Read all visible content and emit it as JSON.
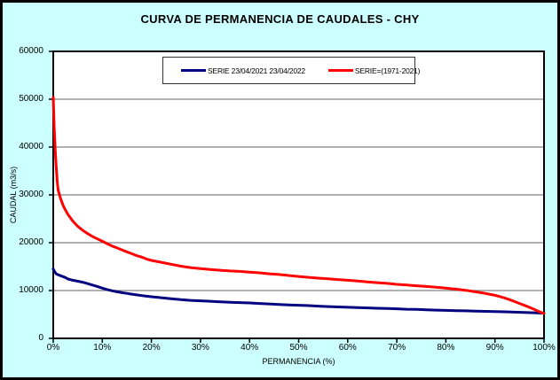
{
  "chart": {
    "title": "CURVA DE PERMANENCIA DE CAUDALES - CHY"
  },
  "chart_data": {
    "type": "line",
    "title": "CURVA DE PERMANENCIA DE CAUDALES - CHY",
    "xlabel": "PERMANENCIA (%)",
    "ylabel": "CAUDAL (m3/s)",
    "xlim": [
      0,
      100
    ],
    "ylim": [
      0,
      60000
    ],
    "x_ticks": [
      "0%",
      "10%",
      "20%",
      "30%",
      "40%",
      "50%",
      "60%",
      "70%",
      "80%",
      "90%",
      "100%"
    ],
    "y_ticks": [
      "0",
      "10000",
      "20000",
      "30000",
      "40000",
      "50000",
      "60000"
    ],
    "grid": "horizontal-only",
    "gridline_color": "#808080",
    "background_color": "#CCFFFF",
    "plot_background": "#FFFFFF",
    "axis_color": "#000000",
    "legend_position": "top-center-inside",
    "series": [
      {
        "name": "SERIE 23/04/2021 23/04/2022",
        "color": "#000080",
        "points": [
          [
            0,
            14500
          ],
          [
            0.3,
            13900
          ],
          [
            0.6,
            13500
          ],
          [
            1,
            13300
          ],
          [
            1.5,
            13100
          ],
          [
            2,
            12900
          ],
          [
            2.5,
            12700
          ],
          [
            3,
            12400
          ],
          [
            4,
            12150
          ],
          [
            5,
            11950
          ],
          [
            6,
            11750
          ],
          [
            7,
            11450
          ],
          [
            8,
            11150
          ],
          [
            9,
            10850
          ],
          [
            10,
            10500
          ],
          [
            11,
            10200
          ],
          [
            12,
            9950
          ],
          [
            13,
            9750
          ],
          [
            14,
            9550
          ],
          [
            15,
            9400
          ],
          [
            16,
            9250
          ],
          [
            17,
            9100
          ],
          [
            18,
            8950
          ],
          [
            19,
            8820
          ],
          [
            20,
            8700
          ],
          [
            22,
            8500
          ],
          [
            24,
            8300
          ],
          [
            26,
            8100
          ],
          [
            28,
            7950
          ],
          [
            30,
            7850
          ],
          [
            32,
            7750
          ],
          [
            34,
            7650
          ],
          [
            36,
            7550
          ],
          [
            38,
            7480
          ],
          [
            40,
            7400
          ],
          [
            42,
            7300
          ],
          [
            44,
            7200
          ],
          [
            46,
            7100
          ],
          [
            48,
            7000
          ],
          [
            50,
            6930
          ],
          [
            52,
            6850
          ],
          [
            54,
            6750
          ],
          [
            56,
            6650
          ],
          [
            58,
            6570
          ],
          [
            60,
            6500
          ],
          [
            62,
            6430
          ],
          [
            64,
            6370
          ],
          [
            66,
            6300
          ],
          [
            68,
            6250
          ],
          [
            70,
            6180
          ],
          [
            72,
            6100
          ],
          [
            74,
            6050
          ],
          [
            76,
            5980
          ],
          [
            78,
            5900
          ],
          [
            80,
            5850
          ],
          [
            82,
            5800
          ],
          [
            84,
            5750
          ],
          [
            86,
            5700
          ],
          [
            88,
            5650
          ],
          [
            90,
            5600
          ],
          [
            92,
            5550
          ],
          [
            94,
            5480
          ],
          [
            96,
            5420
          ],
          [
            98,
            5350
          ],
          [
            100,
            5250
          ]
        ]
      },
      {
        "name": "SERIE=(1971-2021)",
        "color": "#FF0000",
        "points": [
          [
            0,
            50400
          ],
          [
            0.2,
            44000
          ],
          [
            0.4,
            39500
          ],
          [
            0.6,
            36000
          ],
          [
            0.8,
            33000
          ],
          [
            1,
            31000
          ],
          [
            1.5,
            29200
          ],
          [
            2,
            27800
          ],
          [
            2.5,
            26800
          ],
          [
            3,
            25900
          ],
          [
            4,
            24500
          ],
          [
            5,
            23400
          ],
          [
            6,
            22600
          ],
          [
            7,
            21900
          ],
          [
            8,
            21300
          ],
          [
            9,
            20800
          ],
          [
            10,
            20300
          ],
          [
            11,
            19800
          ],
          [
            12,
            19300
          ],
          [
            13,
            18900
          ],
          [
            14,
            18500
          ],
          [
            15,
            18100
          ],
          [
            16,
            17700
          ],
          [
            17,
            17300
          ],
          [
            18,
            17000
          ],
          [
            19,
            16600
          ],
          [
            20,
            16300
          ],
          [
            22,
            15900
          ],
          [
            24,
            15500
          ],
          [
            26,
            15100
          ],
          [
            28,
            14800
          ],
          [
            30,
            14600
          ],
          [
            32,
            14400
          ],
          [
            34,
            14250
          ],
          [
            36,
            14100
          ],
          [
            38,
            14000
          ],
          [
            40,
            13850
          ],
          [
            42,
            13700
          ],
          [
            44,
            13500
          ],
          [
            46,
            13350
          ],
          [
            48,
            13150
          ],
          [
            50,
            12950
          ],
          [
            52,
            12750
          ],
          [
            54,
            12600
          ],
          [
            56,
            12450
          ],
          [
            58,
            12300
          ],
          [
            60,
            12150
          ],
          [
            62,
            12000
          ],
          [
            64,
            11800
          ],
          [
            66,
            11650
          ],
          [
            68,
            11500
          ],
          [
            70,
            11300
          ],
          [
            72,
            11150
          ],
          [
            74,
            11000
          ],
          [
            76,
            10850
          ],
          [
            78,
            10700
          ],
          [
            80,
            10500
          ],
          [
            82,
            10300
          ],
          [
            84,
            10050
          ],
          [
            86,
            9750
          ],
          [
            88,
            9400
          ],
          [
            90,
            9000
          ],
          [
            91,
            8750
          ],
          [
            92,
            8450
          ],
          [
            93,
            8100
          ],
          [
            94,
            7700
          ],
          [
            95,
            7300
          ],
          [
            96,
            6900
          ],
          [
            97,
            6500
          ],
          [
            98,
            6050
          ],
          [
            99,
            5600
          ],
          [
            100,
            5200
          ]
        ]
      }
    ]
  }
}
